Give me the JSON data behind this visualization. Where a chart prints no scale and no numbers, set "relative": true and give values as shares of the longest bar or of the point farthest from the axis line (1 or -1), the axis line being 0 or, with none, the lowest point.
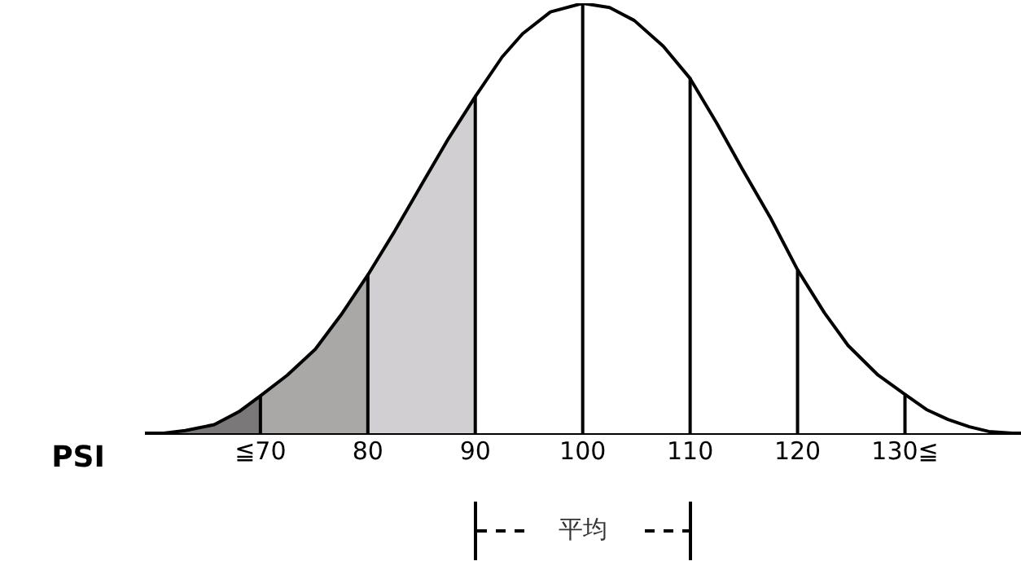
{
  "chart_data": {
    "type": "area",
    "relative": true,
    "xlabel": "PSI",
    "xlim": [
      59.4,
      140.8
    ],
    "xticks": [
      {
        "value": 70,
        "label": "≦70"
      },
      80,
      90,
      100,
      110,
      120,
      {
        "value": 130,
        "label": "130≦"
      }
    ],
    "series": [
      {
        "color": "#7a7878",
        "x": [
          60,
          61,
          63,
          65.7,
          68,
          70,
          70
        ],
        "values": [
          0,
          0,
          0.006,
          0.02,
          0.05,
          0.087,
          0
        ]
      },
      {
        "color": "#aaa7a7",
        "x": [
          70,
          72.5,
          75.1,
          77.5,
          80,
          80
        ],
        "values": [
          0.087,
          0.135,
          0.195,
          0.275,
          0.368,
          0
        ]
      },
      {
        "color": "#d1cfd1",
        "x": [
          80,
          82.5,
          85,
          87.5,
          90,
          90
        ],
        "values": [
          0.368,
          0.47,
          0.578,
          0.685,
          0.783,
          0
        ]
      },
      {
        "color": "#ffffff",
        "x": [
          90,
          92.5,
          94.4,
          97,
          100,
          100
        ],
        "values": [
          0.783,
          0.875,
          0.929,
          0.98,
          1,
          0
        ]
      },
      {
        "color": "#ffffff",
        "x": [
          100,
          102.5,
          104.8,
          107.5,
          110,
          110
        ],
        "values": [
          1,
          0.99,
          0.96,
          0.9,
          0.825,
          0
        ]
      },
      {
        "color": "#ffffff",
        "x": [
          110,
          112.5,
          114.8,
          117.5,
          120,
          120
        ],
        "values": [
          0.825,
          0.72,
          0.617,
          0.5,
          0.38,
          0
        ]
      },
      {
        "color": "#ffffff",
        "x": [
          120,
          122.5,
          124.7,
          127.5,
          130,
          130
        ],
        "values": [
          0.38,
          0.28,
          0.204,
          0.135,
          0.09,
          0
        ]
      },
      {
        "color": "#ffffff",
        "x": [
          130,
          132,
          134,
          136,
          137.8,
          140
        ],
        "values": [
          0.09,
          0.055,
          0.032,
          0.015,
          0.004,
          0
        ]
      }
    ],
    "annotations": [
      "平均"
    ],
    "legend": false,
    "marker": "none"
  }
}
